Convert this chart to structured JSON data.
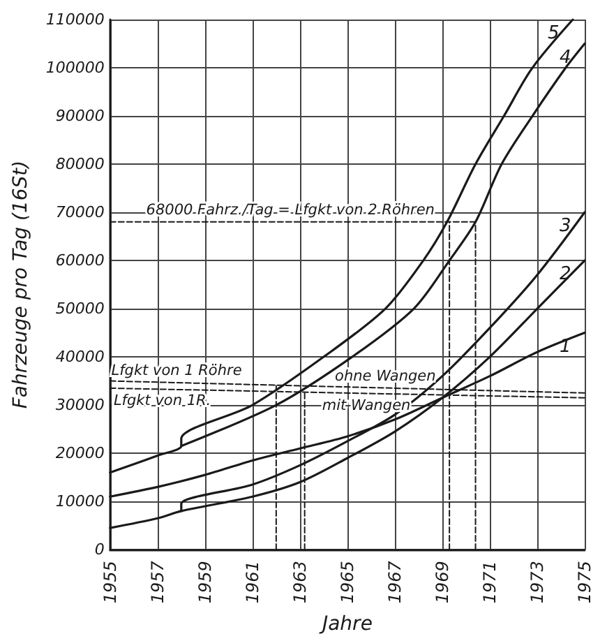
{
  "chart_data": {
    "type": "line",
    "xlabel": "Jahre",
    "ylabel": "Fahrzeuge pro Tag (16St)",
    "xlim": [
      1955,
      1975
    ],
    "ylim": [
      0,
      110000
    ],
    "xticks": [
      1955,
      1957,
      1959,
      1961,
      1963,
      1965,
      1967,
      1969,
      1971,
      1973,
      1975
    ],
    "yticks": [
      0,
      10000,
      20000,
      30000,
      40000,
      50000,
      60000,
      70000,
      80000,
      90000,
      100000,
      110000
    ],
    "grid": true,
    "marker": "none",
    "line_style": "solid",
    "legend": false,
    "series": [
      {
        "name": "5",
        "color": "#1a1a1a",
        "x": [
          1955,
          1957,
          1958,
          1958,
          1961,
          1964,
          1966.6,
          1968.2,
          1969.2,
          1970.4,
          1971.6,
          1972.8,
          1974.5
        ],
        "values": [
          16000,
          19500,
          21500,
          23000,
          30000,
          40000,
          50000,
          60000,
          68000,
          80000,
          90000,
          100000,
          110000
        ]
      },
      {
        "name": "4",
        "color": "#1a1a1a",
        "x": [
          1958,
          1962,
          1965.2,
          1967.8,
          1969.3,
          1970.4,
          1971.5,
          1972.8,
          1974.2,
          1975
        ],
        "values": [
          21500,
          30000,
          40000,
          50000,
          60000,
          68000,
          80000,
          90000,
          100000,
          105000
        ]
      },
      {
        "name": "3",
        "color": "#1a1a1a",
        "x": [
          1958,
          1958,
          1961,
          1963,
          1965,
          1967,
          1969,
          1971,
          1973,
          1975
        ],
        "values": [
          8000,
          9500,
          13500,
          17500,
          22500,
          28000,
          36000,
          46000,
          57000,
          70000
        ]
      },
      {
        "name": "2",
        "color": "#1a1a1a",
        "x": [
          1955,
          1957,
          1958,
          1961,
          1963,
          1965,
          1967,
          1969,
          1971,
          1973,
          1975
        ],
        "values": [
          4500,
          6500,
          8000,
          11000,
          14000,
          19000,
          24500,
          31500,
          40000,
          50000,
          60000
        ]
      },
      {
        "name": "1",
        "color": "#1a1a1a",
        "x": [
          1955,
          1957,
          1959,
          1961,
          1963,
          1965,
          1967,
          1969,
          1971,
          1973,
          1975
        ],
        "values": [
          11000,
          13000,
          15500,
          18500,
          21000,
          23500,
          27000,
          31500,
          36000,
          41000,
          45000
        ]
      },
      {
        "color": "#1a1a1a",
        "line_style": "dashed",
        "x": [
          1955,
          1975
        ],
        "values": [
          35000,
          32500
        ]
      },
      {
        "color": "#1a1a1a",
        "line_style": "dashed",
        "x": [
          1955,
          1975
        ],
        "values": [
          33500,
          31500
        ]
      },
      {
        "color": "#1a1a1a",
        "line_style": "dashed",
        "x": [
          1955,
          1970.4
        ],
        "values": [
          68000,
          68000
        ]
      },
      {
        "color": "#1a1a1a",
        "line_style": "dashed",
        "x": [
          1962,
          1962
        ],
        "values": [
          0,
          34000
        ]
      },
      {
        "color": "#1a1a1a",
        "line_style": "dashed",
        "x": [
          1963.2,
          1963.2
        ],
        "values": [
          0,
          33000
        ]
      },
      {
        "color": "#1a1a1a",
        "line_style": "dashed",
        "x": [
          1969.3,
          1969.3
        ],
        "values": [
          0,
          68000
        ]
      },
      {
        "color": "#1a1a1a",
        "line_style": "dashed",
        "x": [
          1970.4,
          1970.4
        ],
        "values": [
          0,
          68000
        ]
      }
    ],
    "annotations": [
      {
        "text": "68000 Fahrz./Tag = Lfgkt von 2 Röhren",
        "x": 1962.6,
        "y": 68000
      },
      {
        "text": "Lfgkt von 1 Röhre",
        "x": 1957.8,
        "y": 34600
      },
      {
        "text": "ohne Wangen",
        "x": 1966.6,
        "y": 33500
      },
      {
        "text": "Lfgkt von 1R.",
        "x": 1957.2,
        "y": 33300
      },
      {
        "text": "mit Wangen",
        "x": 1965.8,
        "y": 32400
      }
    ]
  }
}
